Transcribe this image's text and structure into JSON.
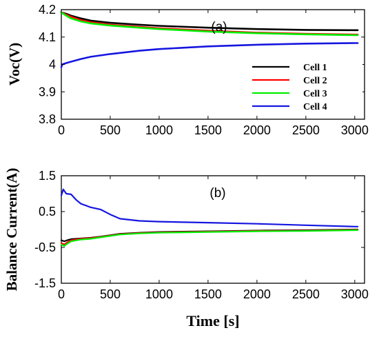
{
  "chart_data": [
    {
      "type": "line",
      "panel_label": "(a)",
      "ylabel": "Voc(V)",
      "xlabel": "",
      "xlim": [
        0,
        3100
      ],
      "ylim": [
        3.8,
        4.2
      ],
      "xticks": [
        "0",
        "500",
        "1000",
        "1500",
        "2000",
        "2500",
        "3000"
      ],
      "yticks": [
        "3.8",
        "3.9",
        "4",
        "4.1",
        "4.2"
      ],
      "legend_position": "center-right",
      "series": [
        {
          "name": "Cell 1",
          "color": "#000000",
          "x": [
            0,
            50,
            100,
            200,
            300,
            500,
            800,
            1000,
            1500,
            2000,
            2500,
            3000,
            3030
          ],
          "y": [
            4.19,
            4.185,
            4.178,
            4.168,
            4.16,
            4.152,
            4.145,
            4.141,
            4.134,
            4.129,
            4.126,
            4.125,
            4.125
          ]
        },
        {
          "name": "Cell 2",
          "color": "#ff0000",
          "x": [
            0,
            50,
            100,
            200,
            300,
            500,
            800,
            1000,
            1500,
            2000,
            2500,
            3000,
            3030
          ],
          "y": [
            4.19,
            4.182,
            4.174,
            4.162,
            4.154,
            4.145,
            4.137,
            4.132,
            4.123,
            4.116,
            4.112,
            4.109,
            4.109
          ]
        },
        {
          "name": "Cell 3",
          "color": "#00ee00",
          "x": [
            0,
            50,
            100,
            200,
            300,
            500,
            800,
            1000,
            1500,
            2000,
            2500,
            3000,
            3030
          ],
          "y": [
            4.19,
            4.178,
            4.168,
            4.157,
            4.15,
            4.142,
            4.134,
            4.129,
            4.12,
            4.114,
            4.11,
            4.107,
            4.107
          ]
        },
        {
          "name": "Cell 4",
          "color": "#1515e0",
          "x": [
            0,
            10,
            50,
            100,
            200,
            300,
            500,
            800,
            1000,
            1500,
            2000,
            2500,
            3000,
            3030
          ],
          "y": [
            3.99,
            4.0,
            4.005,
            4.01,
            4.02,
            4.028,
            4.038,
            4.05,
            4.056,
            4.066,
            4.072,
            4.076,
            4.078,
            4.078
          ]
        }
      ]
    },
    {
      "type": "line",
      "panel_label": "(b)",
      "ylabel": "Balance Current(A)",
      "xlabel": "Time [s]",
      "xlim": [
        0,
        3100
      ],
      "ylim": [
        -1.5,
        1.5
      ],
      "xticks": [
        "0",
        "500",
        "1000",
        "1500",
        "2000",
        "2500",
        "3000"
      ],
      "yticks": [
        "-1.5",
        "-0.5",
        "0.5",
        "1.5"
      ],
      "series": [
        {
          "name": "Cell 1",
          "color": "#000000",
          "x": [
            0,
            30,
            60,
            100,
            200,
            300,
            400,
            500,
            600,
            800,
            1000,
            1500,
            2000,
            2500,
            3000,
            3030
          ],
          "y": [
            -0.3,
            -0.33,
            -0.3,
            -0.27,
            -0.25,
            -0.23,
            -0.2,
            -0.16,
            -0.12,
            -0.09,
            -0.07,
            -0.05,
            -0.03,
            -0.02,
            0.0,
            0.0
          ]
        },
        {
          "name": "Cell 2",
          "color": "#ff0000",
          "x": [
            0,
            30,
            60,
            100,
            200,
            300,
            400,
            500,
            600,
            800,
            1000,
            1500,
            2000,
            2500,
            3000,
            3030
          ],
          "y": [
            -0.38,
            -0.42,
            -0.36,
            -0.3,
            -0.26,
            -0.24,
            -0.21,
            -0.17,
            -0.13,
            -0.1,
            -0.08,
            -0.06,
            -0.04,
            -0.03,
            -0.01,
            -0.01
          ]
        },
        {
          "name": "Cell 3",
          "color": "#00ee00",
          "x": [
            0,
            30,
            60,
            100,
            200,
            300,
            400,
            500,
            600,
            800,
            1000,
            1500,
            2000,
            2500,
            3000,
            3030
          ],
          "y": [
            -0.42,
            -0.46,
            -0.4,
            -0.33,
            -0.28,
            -0.26,
            -0.22,
            -0.18,
            -0.14,
            -0.11,
            -0.09,
            -0.07,
            -0.05,
            -0.04,
            -0.02,
            -0.02
          ]
        },
        {
          "name": "Cell 4",
          "color": "#1515e0",
          "x": [
            0,
            20,
            50,
            100,
            150,
            200,
            300,
            400,
            500,
            600,
            800,
            1000,
            1500,
            2000,
            2500,
            3000,
            3030
          ],
          "y": [
            0.95,
            1.12,
            1.0,
            0.98,
            0.83,
            0.72,
            0.62,
            0.56,
            0.42,
            0.3,
            0.24,
            0.22,
            0.19,
            0.16,
            0.12,
            0.08,
            0.08
          ]
        }
      ]
    }
  ]
}
